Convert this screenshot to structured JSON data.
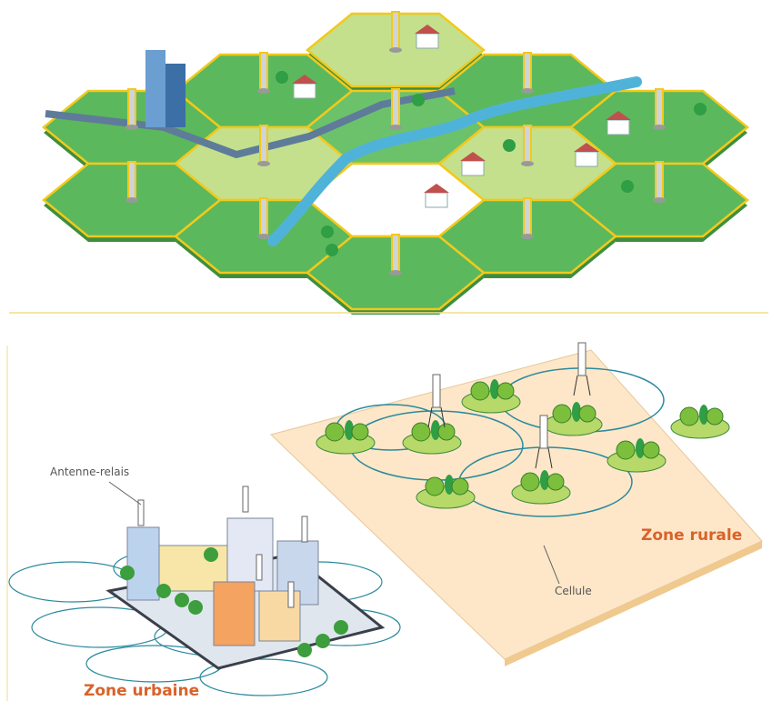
{
  "labels": {
    "antenna": "Antenne-relais",
    "rural": "Zone rurale",
    "cell": "Cellule",
    "urban": "Zone urbaine"
  }
}
